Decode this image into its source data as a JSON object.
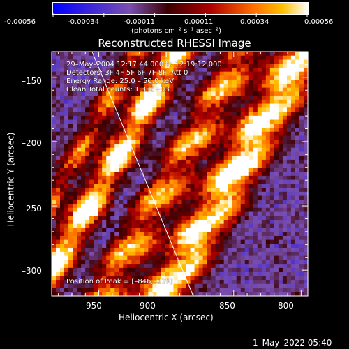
{
  "colorbar": {
    "tick_labels": [
      "-0.00056",
      "-0.00034",
      "-0.00011",
      "0.00011",
      "0.00034",
      "0.00056"
    ],
    "unit_label": "(photons cm⁻² s⁻¹ asec⁻²)",
    "range": [
      -0.00056,
      0.00056
    ],
    "colors": [
      "#0000ff",
      "#7a4fb0",
      "#3a0000",
      "#b00000",
      "#ff6a00",
      "#ffc000",
      "#ffffff"
    ]
  },
  "overlay": {
    "line1": "29–May–2004 12:17:44.000 to 12:19:12.000",
    "line2": "Detectors: 3F 4F 5F 6F 7F 8F, Att 0",
    "line3": "Energy Range: 25.0 – 50.0 keV",
    "line4": "Clean     Total counts: 1.33E+03",
    "peak": "Position of Peak = [–846,–219]"
  },
  "date_stamp": "1–May–2022 05:40",
  "chart_data": {
    "type": "heatmap",
    "title": "Reconstructed RHESSI Image",
    "xlabel": "Heliocentric X (arcsec)",
    "ylabel": "Heliocentric Y (arcsec)",
    "xlim": [
      -985,
      -795
    ],
    "ylim": [
      -320,
      -130
    ],
    "x_ticks": [
      -950,
      -900,
      -850,
      -800
    ],
    "y_ticks": [
      -300,
      -250,
      -200,
      -150
    ],
    "x_tick_labels": [
      "–950",
      "–900",
      "–850",
      "–800"
    ],
    "y_tick_labels": [
      "–300",
      "–250",
      "–200",
      "–150"
    ],
    "peak": [
      -846,
      -219
    ],
    "limb_line": [
      [
        -955,
        -130
      ],
      [
        -880,
        -320
      ]
    ],
    "grid": false
  }
}
